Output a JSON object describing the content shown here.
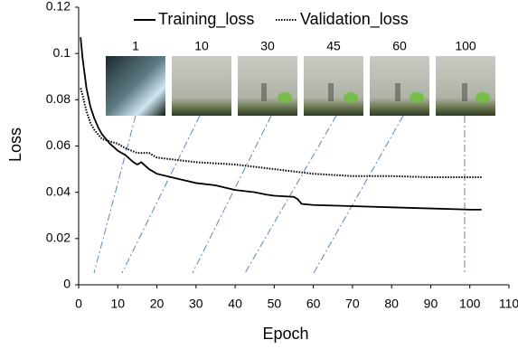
{
  "chart_data": {
    "type": "line",
    "x_label": "Epoch",
    "y_label": "Loss",
    "xlim": [
      0,
      110
    ],
    "xticks": [
      0,
      10,
      20,
      30,
      40,
      50,
      60,
      70,
      80,
      90,
      100,
      110
    ],
    "ylim": [
      0,
      0.12
    ],
    "yticks": [
      0,
      0.02,
      0.04,
      0.06,
      0.08,
      0.1,
      0.12
    ],
    "legend": "top",
    "series": [
      {
        "name": "Training_loss",
        "color": "#000000",
        "dash": "solid",
        "x": [
          0.5,
          1,
          2,
          3,
          4,
          5,
          6,
          8,
          10,
          12,
          14,
          15,
          16,
          18,
          20,
          25,
          30,
          35,
          40,
          45,
          48,
          50,
          55,
          56,
          57,
          60,
          70,
          80,
          90,
          100,
          103
        ],
        "values": [
          0.107,
          0.098,
          0.085,
          0.077,
          0.072,
          0.068,
          0.065,
          0.061,
          0.058,
          0.056,
          0.053,
          0.052,
          0.053,
          0.05,
          0.048,
          0.046,
          0.044,
          0.043,
          0.041,
          0.04,
          0.039,
          0.0385,
          0.038,
          0.037,
          0.035,
          0.0345,
          0.034,
          0.0335,
          0.033,
          0.0325,
          0.0325
        ]
      },
      {
        "name": "Validation_loss",
        "color": "#000000",
        "dash": "dotted",
        "x": [
          0.5,
          1,
          2,
          3,
          4,
          5,
          6,
          8,
          10,
          12,
          15,
          18,
          20,
          25,
          30,
          40,
          50,
          55,
          60,
          70,
          80,
          90,
          100,
          103
        ],
        "values": [
          0.085,
          0.082,
          0.075,
          0.07,
          0.067,
          0.065,
          0.063,
          0.062,
          0.061,
          0.059,
          0.057,
          0.057,
          0.055,
          0.054,
          0.053,
          0.052,
          0.05,
          0.049,
          0.048,
          0.047,
          0.047,
          0.0465,
          0.0465,
          0.0465
        ]
      }
    ],
    "inset_labels": [
      "1",
      "10",
      "30",
      "45",
      "60",
      "100"
    ]
  }
}
